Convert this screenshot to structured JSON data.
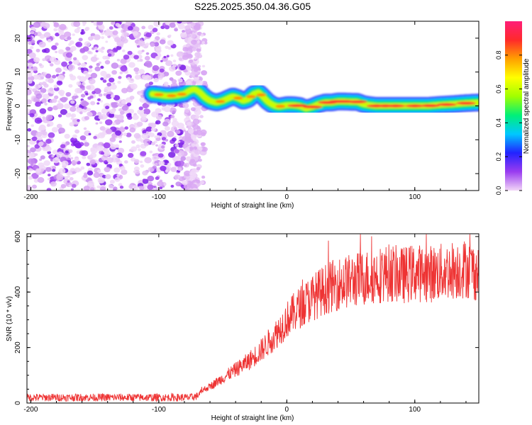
{
  "figure_title": "S225.2025.350.04.36.G05",
  "chart_data": [
    {
      "type": "heatmap",
      "title": "",
      "xlabel": "Height of straight line (km)",
      "ylabel": "Frequency (Hz)",
      "xlim": [
        -203,
        150
      ],
      "ylim": [
        -25,
        25
      ],
      "x_ticks": [
        -200,
        -100,
        0,
        100
      ],
      "y_ticks": [
        -20,
        -10,
        0,
        10,
        20
      ],
      "colorbar": {
        "label": "Normalized spectral amplitude",
        "range": [
          0,
          1
        ],
        "ticks": [
          "0.0",
          "0.2",
          "0.4",
          "0.6",
          "0.8"
        ],
        "colormap": [
          "#f2d6f7",
          "#9a3cf0",
          "#2222ff",
          "#00c8ff",
          "#00f078",
          "#a0ff00",
          "#ffff00",
          "#ffa000",
          "#ff2a2a",
          "#ff1e78"
        ]
      },
      "ridge": {
        "x": [
          -105,
          -100,
          -95,
          -90,
          -85,
          -80,
          -76,
          -72,
          -68,
          -64,
          -60,
          -55,
          -50,
          -46,
          -42,
          -38,
          -34,
          -30,
          -26,
          -22,
          -18,
          -15,
          -12,
          -9,
          -6,
          -3,
          0,
          5,
          10,
          15,
          20,
          25,
          30,
          35,
          40,
          45,
          50,
          55,
          60,
          65,
          70,
          80,
          90,
          100,
          110,
          120,
          130,
          140,
          150
        ],
        "y": [
          3.5,
          3.3,
          3,
          3,
          3.2,
          3.6,
          4.5,
          5,
          4,
          2.5,
          1.5,
          1,
          1.5,
          2.2,
          2.8,
          2.3,
          1.5,
          2,
          3.5,
          4,
          2.5,
          1.3,
          0.5,
          0,
          -0.2,
          0,
          0.2,
          0.2,
          0,
          -0.8,
          -0.3,
          0.5,
          1,
          1,
          1.3,
          1.3,
          1.2,
          1.2,
          0.5,
          0.2,
          0,
          0,
          0,
          0,
          0,
          0.3,
          0.5,
          0.8,
          1
        ]
      }
    },
    {
      "type": "line",
      "title": "",
      "xlabel": "Height of straight line (km)",
      "ylabel": "SNR (10 * v/v)",
      "xlim": [
        -203,
        150
      ],
      "ylim": [
        0,
        610
      ],
      "x_ticks": [
        -200,
        -100,
        0,
        100
      ],
      "y_ticks": [
        0,
        200,
        400,
        600
      ],
      "series": [
        {
          "name": "SNR",
          "color": "#ee3333",
          "envelope_x": [
            -203,
            -75,
            -70,
            -66,
            -60,
            -50,
            -40,
            -30,
            -20,
            -10,
            0,
            10,
            20,
            30,
            40,
            50,
            60,
            70,
            80,
            90,
            100,
            110,
            120,
            130,
            140,
            150
          ],
          "envelope_y": [
            20,
            20,
            25,
            45,
            60,
            90,
            120,
            150,
            190,
            240,
            300,
            345,
            380,
            410,
            430,
            440,
            450,
            460,
            470,
            460,
            470,
            465,
            470,
            480,
            485,
            470
          ]
        }
      ]
    }
  ]
}
